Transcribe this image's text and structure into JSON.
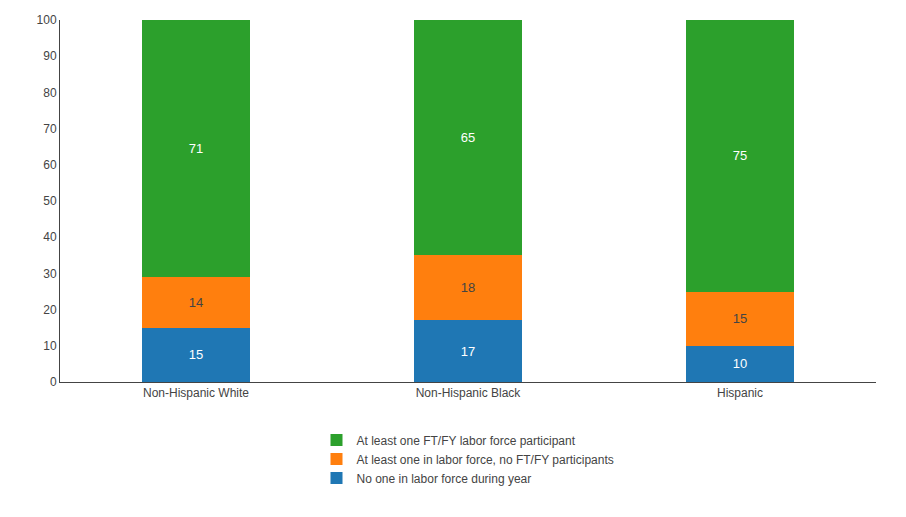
{
  "chart_data": {
    "type": "bar",
    "stacked": true,
    "categories": [
      "Non-Hispanic White",
      "Non-Hispanic Black",
      "Hispanic"
    ],
    "series": [
      {
        "name": "No one in labor force during year",
        "values": [
          15,
          17,
          10
        ]
      },
      {
        "name": "At least one in labor force, no FT/FY participants",
        "values": [
          14,
          18,
          15
        ]
      },
      {
        "name": "At least one FT/FY labor force participant",
        "values": [
          71,
          65,
          75
        ]
      }
    ],
    "ylim": [
      0,
      100
    ],
    "yticks": [
      0,
      10,
      20,
      30,
      40,
      50,
      60,
      70,
      80,
      90,
      100
    ],
    "grid": false,
    "data_labels": true,
    "legend": "bottom"
  }
}
